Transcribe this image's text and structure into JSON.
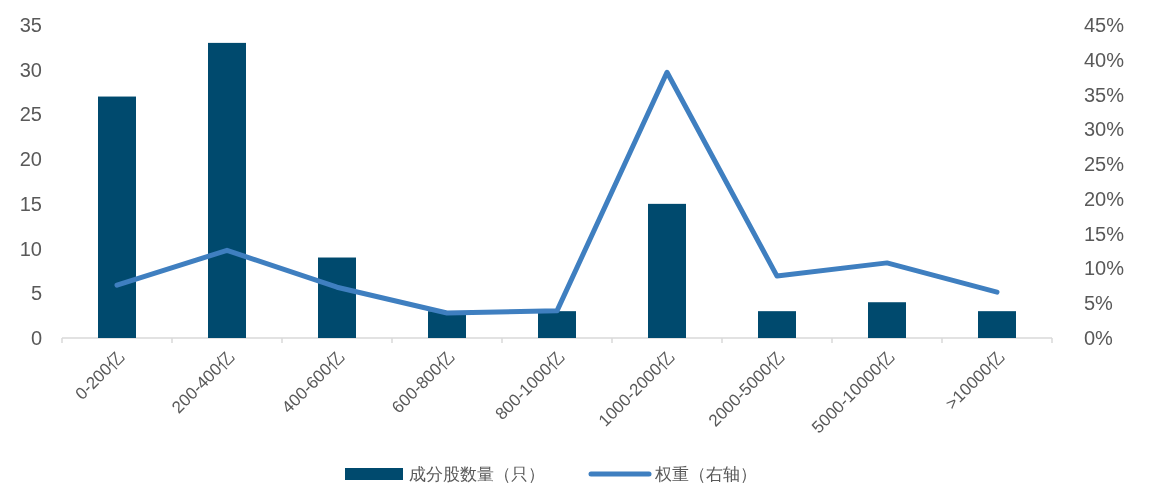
{
  "chart_data": {
    "type": "bar",
    "categories": [
      "0-200亿",
      "200-400亿",
      "400-600亿",
      "600-800亿",
      "800-1000亿",
      "1000-2000亿",
      "2000-5000亿",
      "5000-10000亿",
      ">10000亿"
    ],
    "series": [
      {
        "name": "成分股数量（只）",
        "color": "#004a6e",
        "values": [
          27,
          33,
          9,
          3,
          3,
          15,
          3,
          4,
          3
        ]
      },
      {
        "name": "权重（右轴）",
        "type": "line",
        "axis": "y2",
        "color": "#3f7fc0",
        "values": [
          7.6,
          12.6,
          7.3,
          3.6,
          3.9,
          38.2,
          8.9,
          10.8,
          6.6
        ]
      }
    ],
    "ylim": [
      0,
      35
    ],
    "yticks": [
      0,
      5,
      10,
      15,
      20,
      25,
      30,
      35
    ],
    "y2lim": [
      0,
      45
    ],
    "y2ticks": [
      {
        "value": 0,
        "label": "0%"
      },
      {
        "value": 5,
        "label": "5%"
      },
      {
        "value": 10,
        "label": "10%"
      },
      {
        "value": 15,
        "label": "15%"
      },
      {
        "value": 20,
        "label": "20%"
      },
      {
        "value": 25,
        "label": "25%"
      },
      {
        "value": 30,
        "label": "30%"
      },
      {
        "value": 35,
        "label": "35%"
      },
      {
        "value": 40,
        "label": "40%"
      },
      {
        "value": 45,
        "label": "45%"
      }
    ],
    "legend": "bottom"
  }
}
